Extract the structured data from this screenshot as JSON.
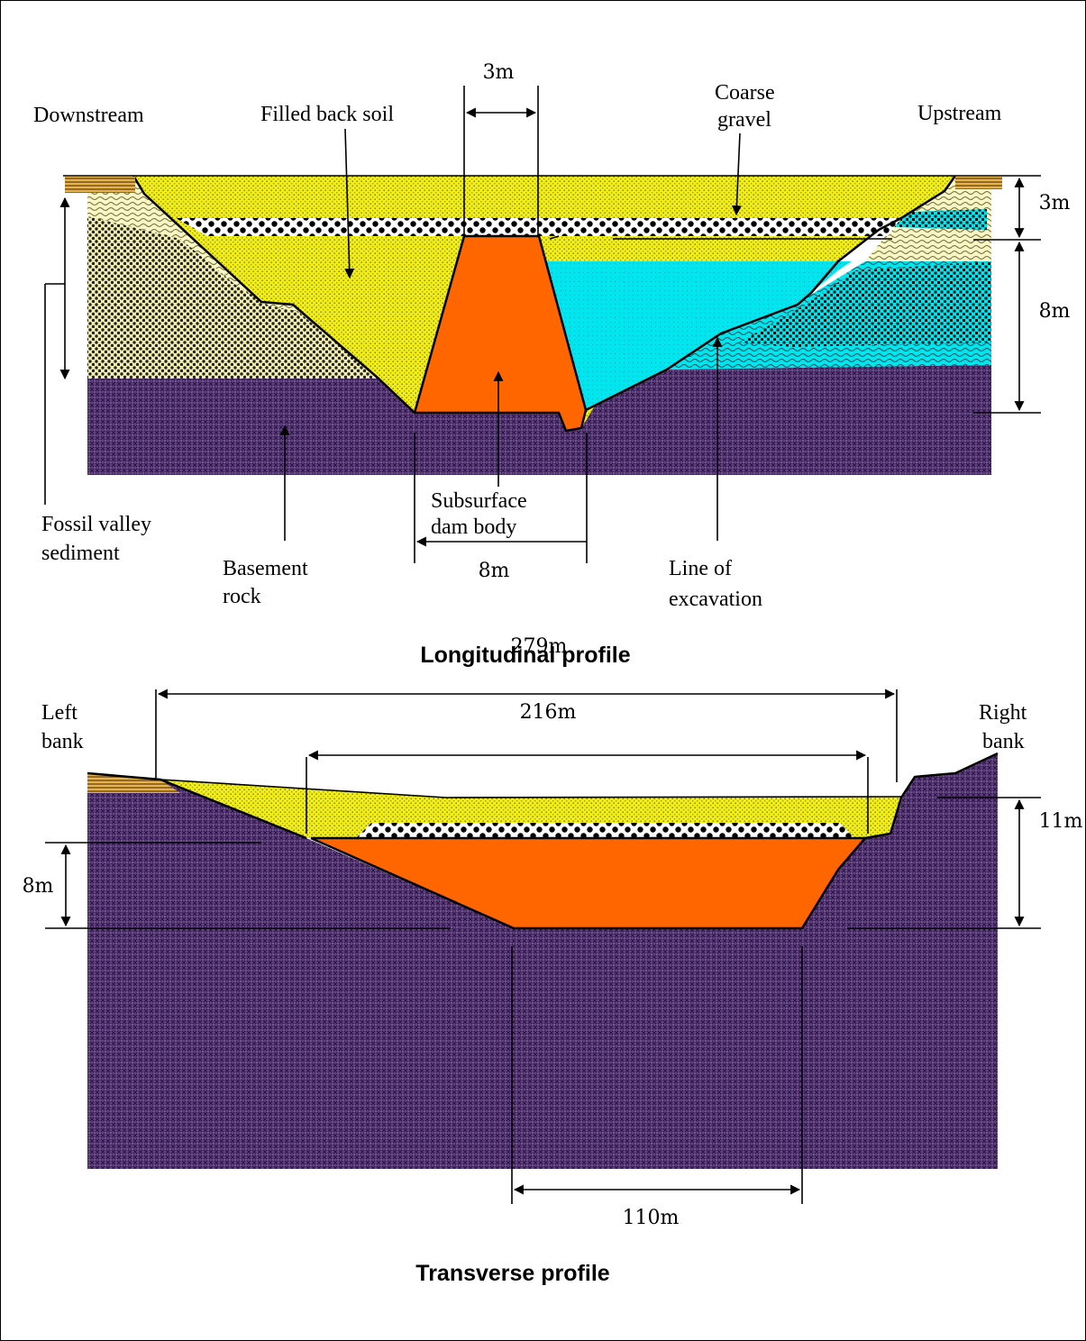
{
  "longitudinal": {
    "title": "Longitudinal profile",
    "labels": {
      "downstream": "Downstream",
      "filled_back_soil": "Filled back soil",
      "coarse_gravel_1": "Coarse",
      "coarse_gravel_2": "gravel",
      "upstream": "Upstream",
      "fossil_1": "Fossil valley",
      "fossil_2": "sediment",
      "basement_1": "Basement",
      "basement_2": "rock",
      "dam_1": "Subsurface",
      "dam_2": "dam body",
      "excavation_1": "Line of",
      "excavation_2": "excavation"
    },
    "dimensions": {
      "top_width": "3m",
      "top_height": "3m",
      "body_height": "8m",
      "base_width": "8m"
    }
  },
  "transverse": {
    "title": "Transverse profile",
    "labels": {
      "left_1": "Left",
      "left_2": "bank",
      "right_1": "Right",
      "right_2": "bank"
    },
    "dimensions": {
      "overall_width": "279m",
      "crest_width": "216m",
      "base_width": "110m",
      "right_height": "11m",
      "left_height": "8m"
    }
  },
  "colors": {
    "fill_soil": "#f2ee1c",
    "dam_body": "#ff6600",
    "water": "#00e5ee",
    "basement": "#5a3a7a",
    "sediment": "#fbf7c4",
    "gravel": "#000000"
  }
}
